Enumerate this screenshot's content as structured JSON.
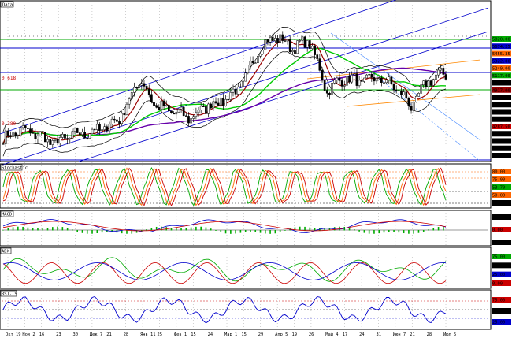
{
  "panes": {
    "price": {
      "name": "Data"
    },
    "stochastic": {
      "name": "Stochastic"
    },
    "macd": {
      "name": "MACD"
    },
    "adx": {
      "name": "ADX"
    },
    "rsi": {
      "name": "RSI, 9"
    }
  },
  "fib_labels": {
    "upper": "0.618",
    "lower": "0.380"
  },
  "x_axis": [
    "Окт 19",
    "Ноя 2",
    "16",
    "23",
    "30",
    "Дек 7",
    "21",
    "28",
    "Янв 11",
    "25",
    "Фев 1",
    "15",
    "24",
    "Мар 1",
    "15",
    "29",
    "Апр 5",
    "19",
    "26",
    "Май 4",
    "17",
    "24",
    "31",
    "Июн 7",
    "21",
    "28",
    "Июл 5"
  ],
  "price_scale": {
    "labels": [
      "5820.00",
      "5674.25",
      "5455.35",
      "5322.00",
      "5249.00",
      "5117.00",
      "5066.00",
      "4917.00",
      "4814.45",
      "4691.82",
      "4599.21",
      "4496.00",
      "4287.50",
      "4177.70",
      "3980.00",
      "3740.00",
      "3649.40"
    ],
    "colors": [
      "#00aa00",
      "#0000cc",
      "#ff6600",
      "#0000cc",
      "#ff6600",
      "#00aa00",
      "#000000",
      "#990000",
      "#000000",
      "#000000",
      "#000000",
      "#000000",
      "#cc0000",
      "#000000",
      "#000000",
      "#000000",
      "#000000"
    ]
  },
  "stoch_scale": {
    "labels": [
      "80.00",
      "75.00",
      "53.70",
      "50.00",
      "20.00"
    ],
    "colors": [
      "#ff6600",
      "#ff6600",
      "#00aa00",
      "#ff6600",
      "#000000"
    ]
  },
  "macd_scale": {
    "labels": [
      "200.00",
      "0.00",
      "-200.00"
    ],
    "colors": [
      "#000000",
      "#cc0000",
      "#000000"
    ]
  },
  "adx_scale": {
    "labels": [
      "75.00",
      "50.00",
      "25.00",
      "0.00"
    ],
    "colors": [
      "#00aa00",
      "#000000",
      "#0000cc",
      "#cc0000"
    ]
  },
  "rsi_scale": {
    "labels": [
      "75.00",
      "50.00",
      "25.00"
    ],
    "colors": [
      "#cc0000",
      "#000000",
      "#0000cc"
    ]
  },
  "colors": {
    "bg": "#ffffff",
    "candle": "#000000",
    "ma_fast": "#990000",
    "ma_mid": "#00cc00",
    "ma_slow": "#6600aa",
    "bands": "#000000",
    "channel": "#0000cc",
    "fan": "#ff8800",
    "stoch_k": "#00aa00",
    "stoch_d": "#ff6600",
    "stoch_slow": "#cc0000",
    "macd": "#0000cc",
    "macd_signal": "#cc0000",
    "macd_hist": "#00aa00",
    "adx_plus": "#00aa00",
    "adx_minus": "#cc0000",
    "adx": "#0000cc",
    "rsi": "#0000cc"
  },
  "chart_data": {
    "type": "line",
    "title": "",
    "xlabel": "",
    "ylabel": "",
    "ylim": [
      3649.4,
      5820.0
    ],
    "x": [
      "Окт 19",
      "Ноя 2",
      "16",
      "23",
      "30",
      "Дек 7",
      "21",
      "28",
      "Янв 11",
      "25",
      "Фев 1",
      "15",
      "24",
      "Мар 1",
      "15",
      "29",
      "Апр 5",
      "19",
      "26",
      "Май 4",
      "17",
      "24",
      "31",
      "Июн 7",
      "21",
      "28",
      "Июл 5"
    ],
    "series": [
      {
        "values": [
          3940,
          4060,
          4000,
          3880,
          3980,
          4030,
          4090,
          4270,
          4760,
          4390,
          4310,
          4230,
          4400,
          4480,
          4660,
          5180,
          5350,
          5200,
          5280,
          4600,
          4780,
          4720,
          4780,
          4660,
          4380,
          4760,
          4840
        ]
      }
    ]
  }
}
